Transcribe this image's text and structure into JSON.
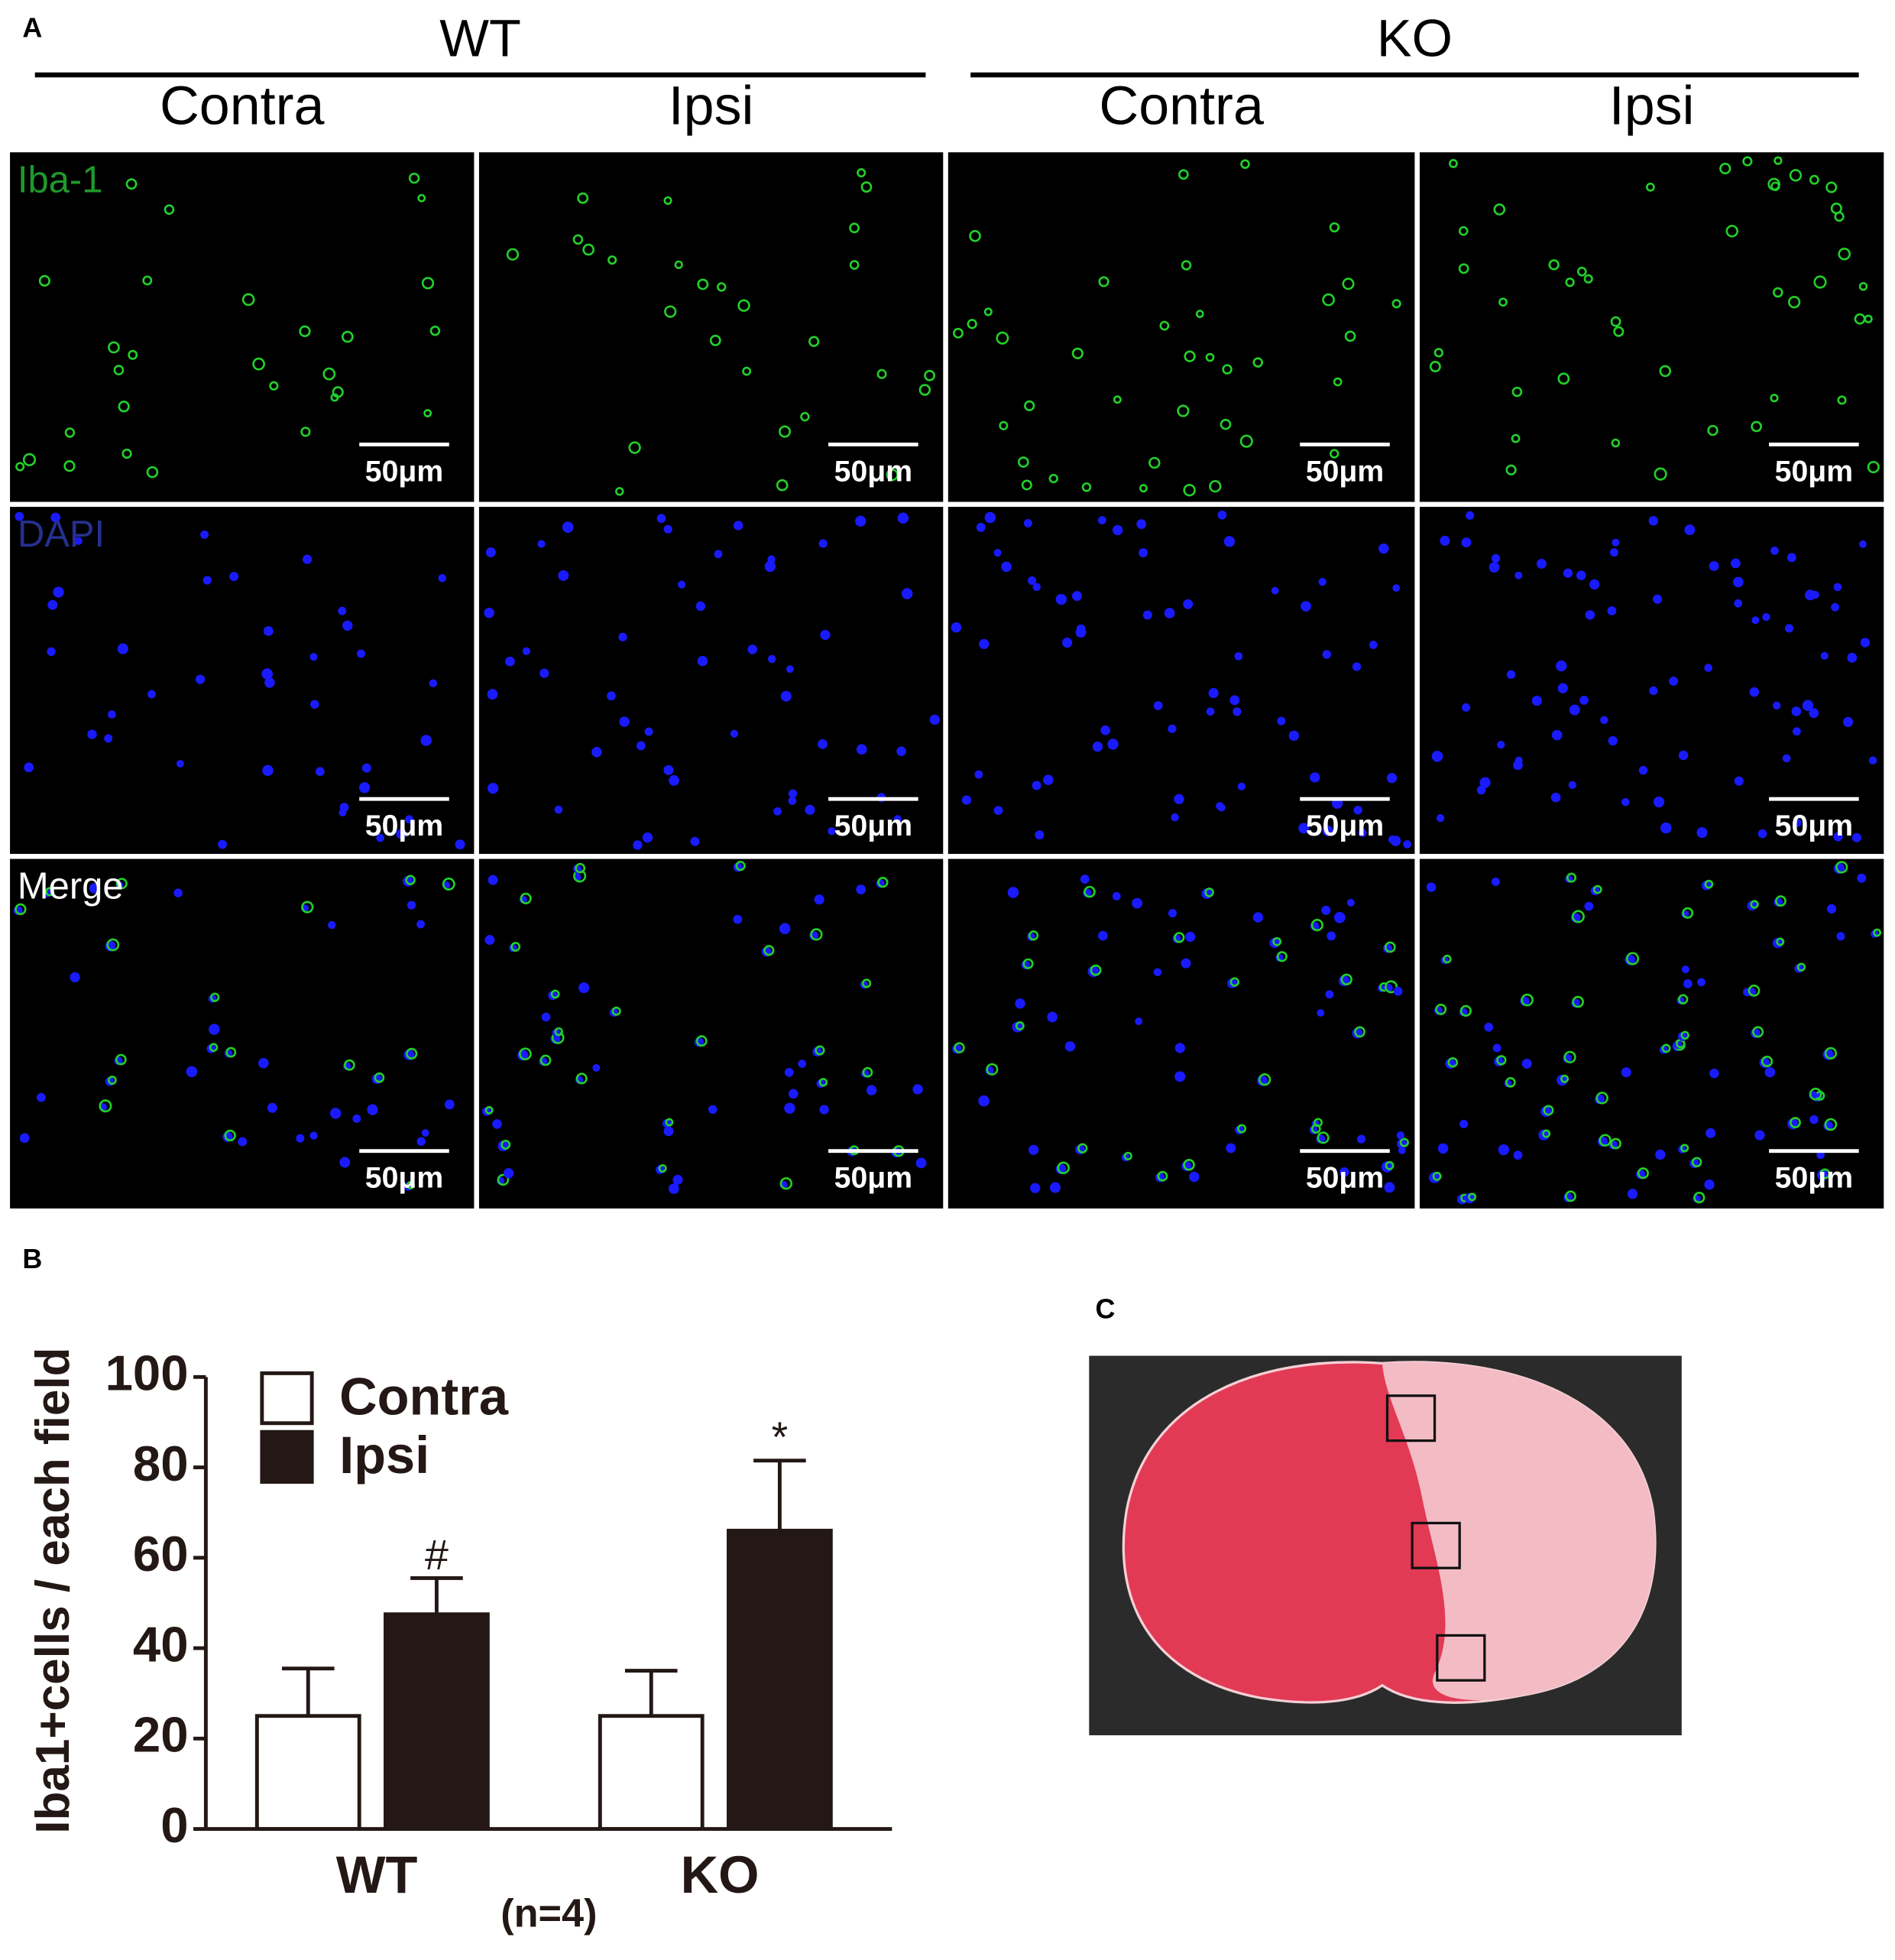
{
  "panel_a": {
    "letter": "A",
    "groups": [
      {
        "label": "WT",
        "columns": [
          "Contra",
          "Ipsi"
        ]
      },
      {
        "label": "KO",
        "columns": [
          "Contra",
          "Ipsi"
        ]
      }
    ],
    "rows": [
      "Iba-1",
      "DAPI",
      "Merge"
    ],
    "scale_bar": "50μm"
  },
  "chart_data": {
    "type": "bar",
    "letter": "B",
    "ylabel": "Iba1+cells / each field",
    "xlabel": "(n=4)",
    "categories": [
      "WT",
      "KO"
    ],
    "series": [
      {
        "name": "Contra",
        "color": "#ffffff",
        "values": [
          25,
          25
        ],
        "errors": [
          10.5,
          10
        ]
      },
      {
        "name": "Ipsi",
        "color": "#231815",
        "values": [
          47.5,
          66
        ],
        "errors": [
          8,
          15.5
        ],
        "value_annotations": [
          "#",
          "*"
        ]
      }
    ],
    "ylim": [
      0,
      100
    ],
    "yticks": [
      0,
      20,
      40,
      60,
      80,
      100
    ],
    "legend": "upper left"
  },
  "panel_c": {
    "letter": "C"
  }
}
